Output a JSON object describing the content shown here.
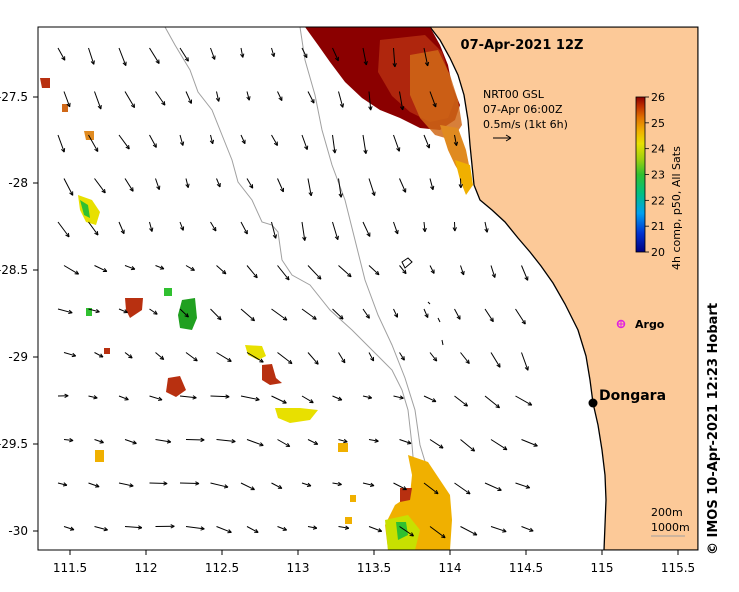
{
  "map": {
    "title": "07-Apr-2021 12Z",
    "current_label": {
      "line1": "NRT00 GSL",
      "line2": "07-Apr 06:00Z",
      "line3": "0.5m/s (1kt 6h)"
    },
    "x_ticks": [
      "111.5",
      "112",
      "112.5",
      "113",
      "113.5",
      "114",
      "114.5",
      "115",
      "115.5"
    ],
    "y_ticks": [
      "-27.5",
      "-28",
      "-28.5",
      "-29",
      "-29.5",
      "-30"
    ],
    "colorbar": {
      "ticks": [
        "26",
        "25",
        "24",
        "23",
        "22",
        "21",
        "20"
      ],
      "label": "4h comp, p50, All Sats",
      "colors": [
        "#000080",
        "#0030d0",
        "#00a0f0",
        "#00c080",
        "#30c030",
        "#a0d010",
        "#e8e000",
        "#f0b000",
        "#e07000",
        "#c03000",
        "#8b0000"
      ]
    },
    "places": {
      "argo": "Argo",
      "dongara": "Dongara"
    },
    "scale": {
      "line1": "200m",
      "line2": "1000m"
    },
    "credit": "© IMOS 10-Apr-2021 12:23 Hobart",
    "colors": {
      "land": "#fcc998",
      "coast": "#000000",
      "isobath": "#a0a0a0",
      "argo": "#e020e0"
    }
  }
}
